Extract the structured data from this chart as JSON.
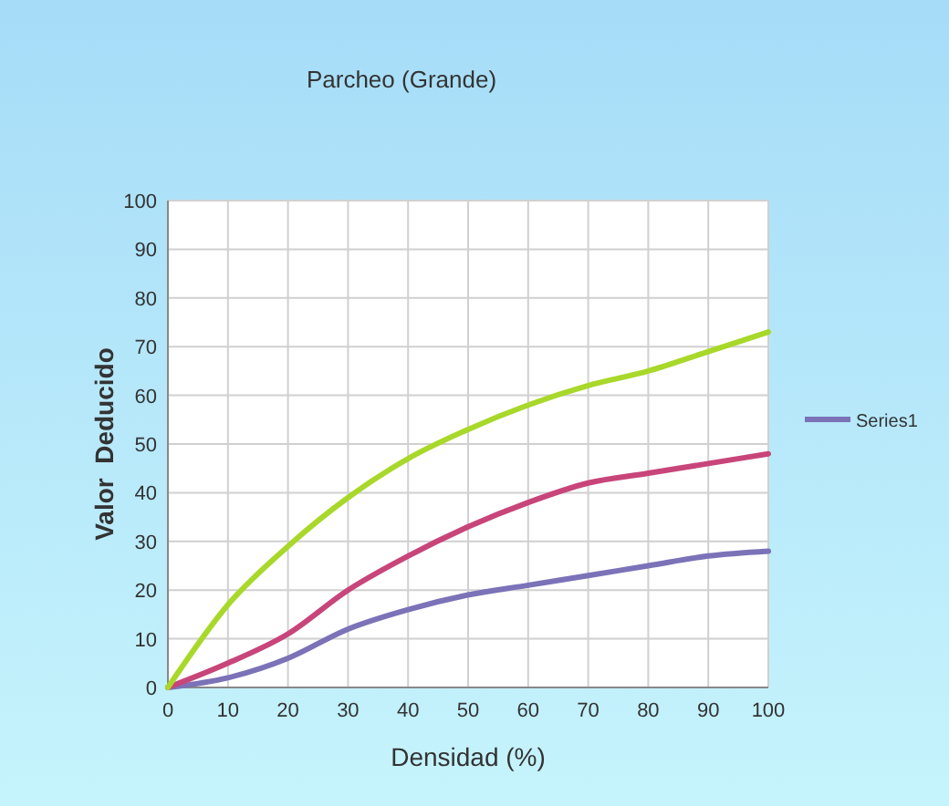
{
  "chart_data": {
    "type": "line",
    "title": "Parcheo (Grande)",
    "xlabel": "Densidad (%)",
    "ylabel": "Valor  Deducido",
    "x": [
      0,
      10,
      20,
      30,
      40,
      50,
      60,
      70,
      80,
      90,
      100
    ],
    "series": [
      {
        "name": "Series1",
        "color": "#7b72b8",
        "values": [
          0,
          2,
          6,
          12,
          16,
          19,
          21,
          23,
          25,
          27,
          28
        ]
      },
      {
        "color": "#c8457a",
        "values": [
          0,
          5,
          11,
          20,
          27,
          33,
          38,
          42,
          44,
          46,
          48
        ]
      },
      {
        "color": "#a8d82a",
        "values": [
          0,
          17,
          29,
          39,
          47,
          53,
          58,
          62,
          65,
          69,
          73
        ]
      }
    ],
    "xlim": [
      0,
      100
    ],
    "xticks": [
      0,
      10,
      20,
      30,
      40,
      50,
      60,
      70,
      80,
      90,
      100
    ],
    "ylim": [
      0,
      100
    ],
    "yticks": [
      0,
      10,
      20,
      30,
      40,
      50,
      60,
      70,
      80,
      90,
      100
    ],
    "grid": true,
    "legend": "right",
    "marker": "none",
    "line_style": "solid"
  }
}
